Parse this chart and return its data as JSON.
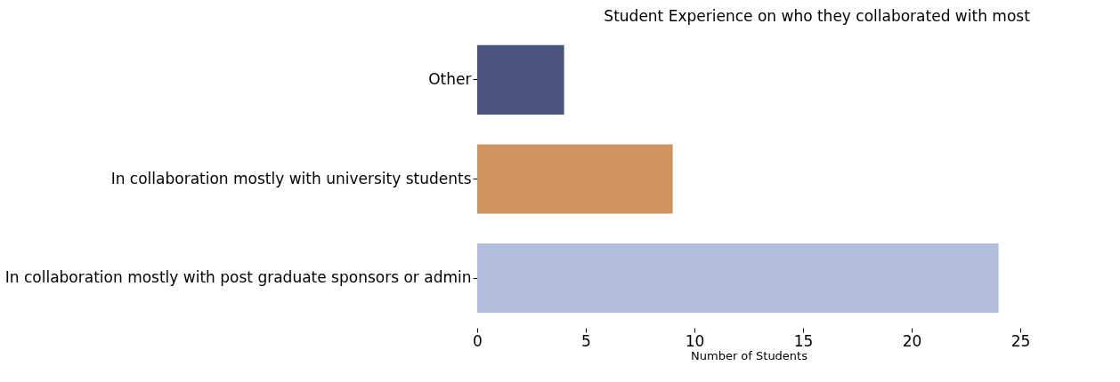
{
  "chart_data": {
    "type": "bar",
    "orientation": "horizontal",
    "title": "Student Experience on who they collaborated with most",
    "xlabel": "Number of Students",
    "categories": [
      "Other",
      "In collaboration mostly with university students",
      "In collaboration mostly with post graduate sponsors or admin"
    ],
    "values": [
      4,
      9,
      24
    ],
    "colors": [
      "#4a5580",
      "#d09360",
      "#b3bedd"
    ],
    "xlim": [
      0,
      25
    ],
    "xticks": [
      0,
      5,
      10,
      15,
      20,
      25
    ],
    "grid": false,
    "legend": false
  }
}
